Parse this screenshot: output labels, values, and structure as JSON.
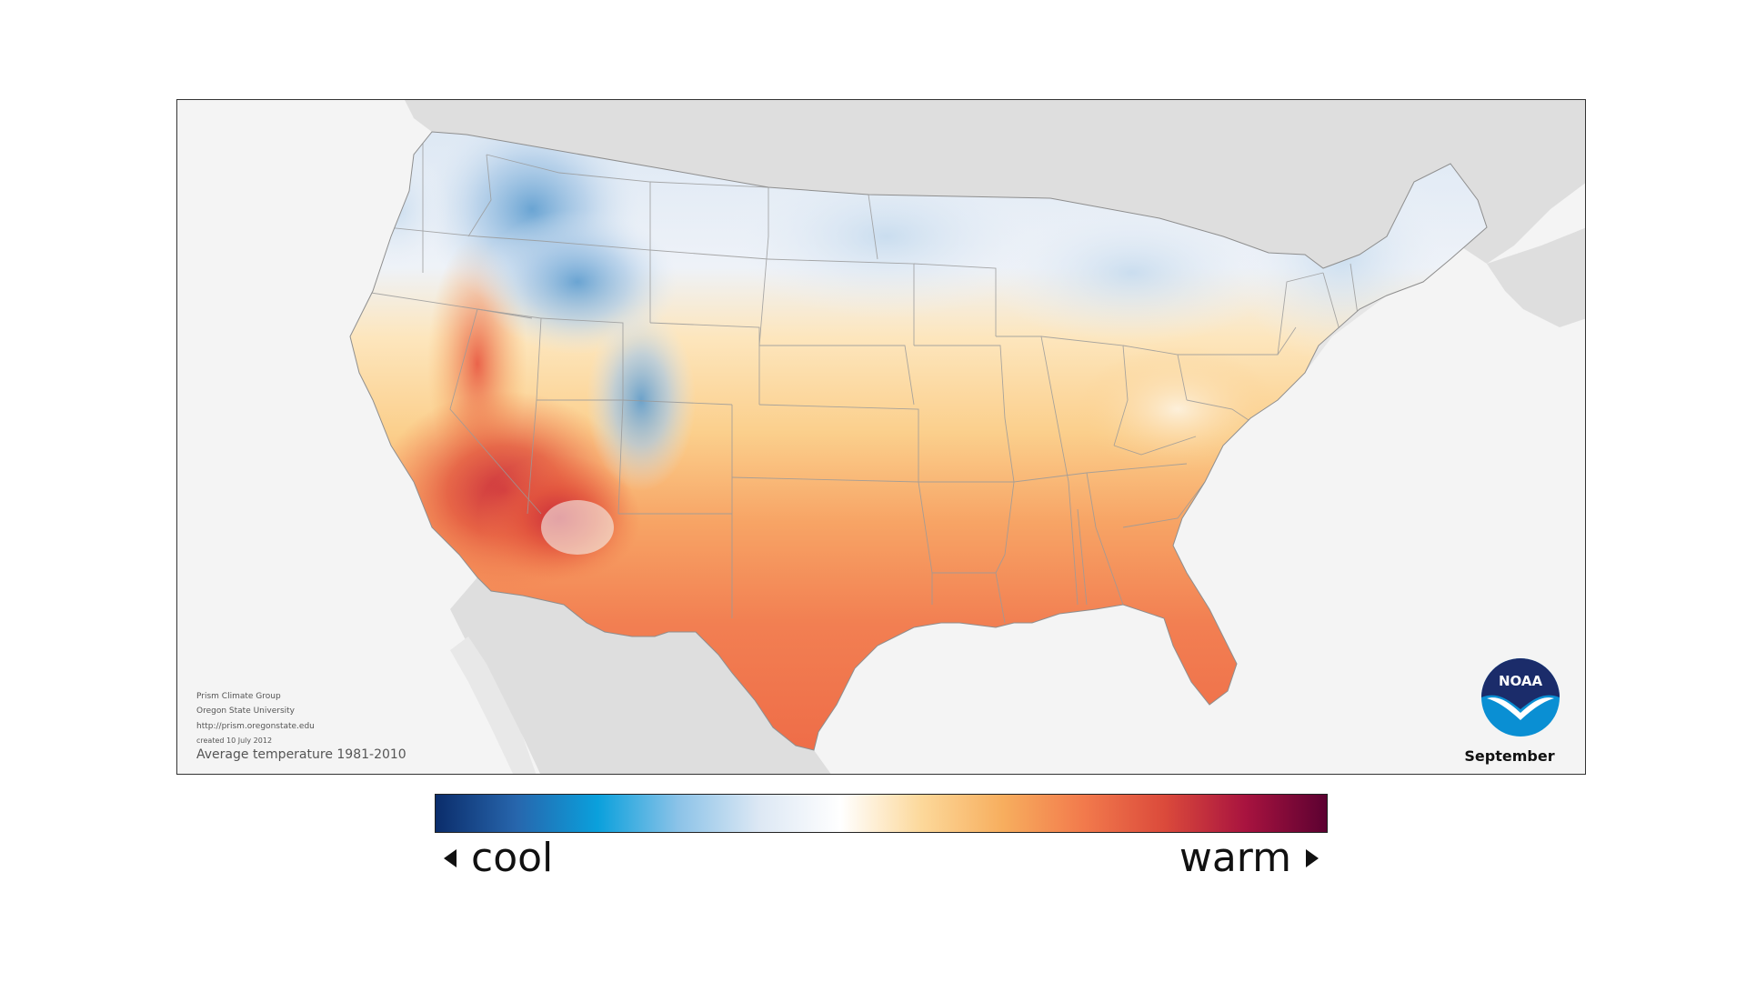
{
  "map": {
    "title": "Average temperature 1981-2010",
    "month": "September",
    "credits": [
      "Prism Climate Group",
      "Oregon State University",
      "http://prism.oregonstate.edu",
      "created 10 July 2012"
    ],
    "logo_text": "NOAA",
    "region": "contiguous United States"
  },
  "legend": {
    "cool_label": "cool",
    "warm_label": "warm",
    "gradient_stops": [
      "#0b2d6b",
      "#2766ad",
      "#0aa0dc",
      "#8cc3e8",
      "#dde8f4",
      "#ffffff",
      "#fcd89a",
      "#f7ae5e",
      "#f27a4c",
      "#db4a3b",
      "#a8133f",
      "#5c0131"
    ]
  },
  "colors": {
    "land_background": "#dedede",
    "water_background": "#f4f4f4",
    "border": "#888888",
    "noaa_dark": "#1b2c6a",
    "noaa_light": "#0a8fd3"
  }
}
